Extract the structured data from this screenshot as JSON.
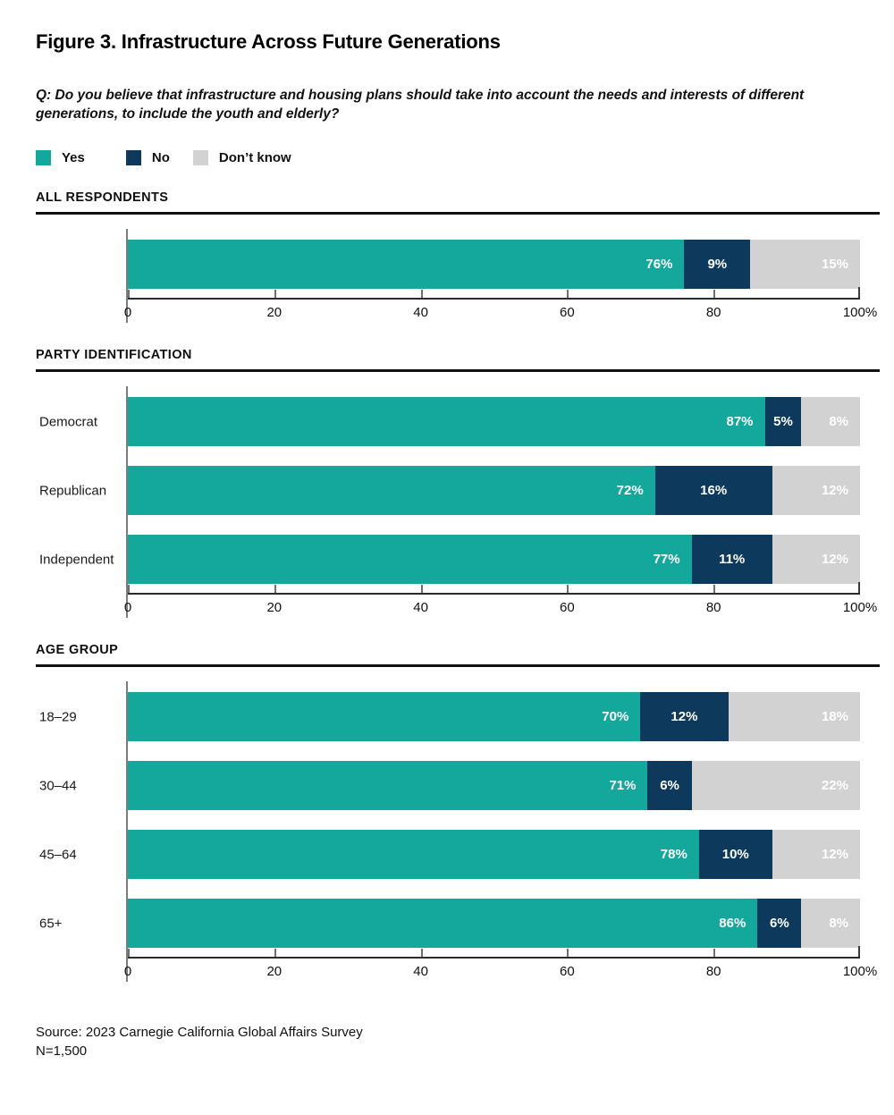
{
  "title": "Figure 3. Infrastructure Across Future Generations",
  "question": {
    "lines": [
      "Q: Do you believe that infrastructure and housing plans should take into account the needs and interests of different",
      "generations, to include the youth and elderly?"
    ]
  },
  "colors": {
    "yes": "#14a79c",
    "no": "#0d3a5c",
    "dont_know": "#d2d2d3"
  },
  "legend": {
    "items": [
      {
        "label": "Yes",
        "color": "#14a79c"
      },
      {
        "label": "No",
        "color": "#0d3a5c"
      },
      {
        "label": "Don’t know",
        "color": "#d2d2d3"
      }
    ]
  },
  "axis": {
    "ticks": {
      "t0": "0",
      "t20": "20",
      "t40": "40",
      "t60": "60",
      "t80": "80",
      "t100": "100%"
    }
  },
  "sections": [
    {
      "heading": "ALL RESPONDENTS",
      "rows": [
        {
          "label": "",
          "values": {
            "yes": 76,
            "no": 9,
            "dk": 15
          },
          "labels": {
            "yes": "76%",
            "no": "9%",
            "dk": "15%"
          }
        }
      ]
    },
    {
      "heading": "PARTY IDENTIFICATION",
      "rows": [
        {
          "label": "Democrat",
          "values": {
            "yes": 87,
            "no": 5,
            "dk": 8
          },
          "labels": {
            "yes": "87%",
            "no": "5%",
            "dk": "8%"
          }
        },
        {
          "label": "Republican",
          "values": {
            "yes": 72,
            "no": 16,
            "dk": 12
          },
          "labels": {
            "yes": "72%",
            "no": "16%",
            "dk": "12%"
          }
        },
        {
          "label": "Independent",
          "values": {
            "yes": 77,
            "no": 11,
            "dk": 12
          },
          "labels": {
            "yes": "77%",
            "no": "11%",
            "dk": "12%"
          }
        }
      ]
    },
    {
      "heading": "AGE GROUP",
      "rows": [
        {
          "label": "18–29",
          "values": {
            "yes": 70,
            "no": 12,
            "dk": 18
          },
          "labels": {
            "yes": "70%",
            "no": "12%",
            "dk": "18%"
          }
        },
        {
          "label": "30–44",
          "values": {
            "yes": 71,
            "no": 6,
            "dk": 22
          },
          "labels": {
            "yes": "71%",
            "no": "6%",
            "dk": "22%"
          }
        },
        {
          "label": "45–64",
          "values": {
            "yes": 78,
            "no": 10,
            "dk": 12
          },
          "labels": {
            "yes": "78%",
            "no": "10%",
            "dk": "12%"
          }
        },
        {
          "label": "65+",
          "values": {
            "yes": 86,
            "no": 6,
            "dk": 8
          },
          "labels": {
            "yes": "86%",
            "no": "6%",
            "dk": "8%"
          }
        }
      ]
    }
  ],
  "chart_data": [
    {
      "type": "bar",
      "orientation": "horizontal",
      "stacked": true,
      "title": "ALL RESPONDENTS",
      "categories": [
        "All respondents"
      ],
      "series": [
        {
          "name": "Yes",
          "values": [
            76
          ]
        },
        {
          "name": "No",
          "values": [
            9
          ]
        },
        {
          "name": "Don’t know",
          "values": [
            15
          ]
        }
      ],
      "xlim": [
        0,
        100
      ],
      "x_ticks": [
        0,
        20,
        40,
        60,
        80,
        100
      ],
      "value_labels": "percent_inside_segments",
      "legend_position": "top"
    },
    {
      "type": "bar",
      "orientation": "horizontal",
      "stacked": true,
      "title": "PARTY IDENTIFICATION",
      "categories": [
        "Democrat",
        "Republican",
        "Independent"
      ],
      "series": [
        {
          "name": "Yes",
          "values": [
            87,
            72,
            77
          ]
        },
        {
          "name": "No",
          "values": [
            5,
            16,
            11
          ]
        },
        {
          "name": "Don’t know",
          "values": [
            8,
            12,
            12
          ]
        }
      ],
      "xlim": [
        0,
        100
      ],
      "x_ticks": [
        0,
        20,
        40,
        60,
        80,
        100
      ],
      "value_labels": "percent_inside_segments",
      "legend_position": "top"
    },
    {
      "type": "bar",
      "orientation": "horizontal",
      "stacked": true,
      "title": "AGE GROUP",
      "categories": [
        "18–29",
        "30–44",
        "45–64",
        "65+"
      ],
      "series": [
        {
          "name": "Yes",
          "values": [
            70,
            71,
            78,
            86
          ]
        },
        {
          "name": "No",
          "values": [
            12,
            6,
            10,
            6
          ]
        },
        {
          "name": "Don’t know",
          "values": [
            18,
            22,
            12,
            8
          ]
        }
      ],
      "xlim": [
        0,
        100
      ],
      "x_ticks": [
        0,
        20,
        40,
        60,
        80,
        100
      ],
      "value_labels": "percent_inside_segments",
      "legend_position": "top"
    }
  ],
  "source": {
    "line1": "Source: 2023 Carnegie California Global Affairs Survey",
    "line2": "N=1,500"
  }
}
